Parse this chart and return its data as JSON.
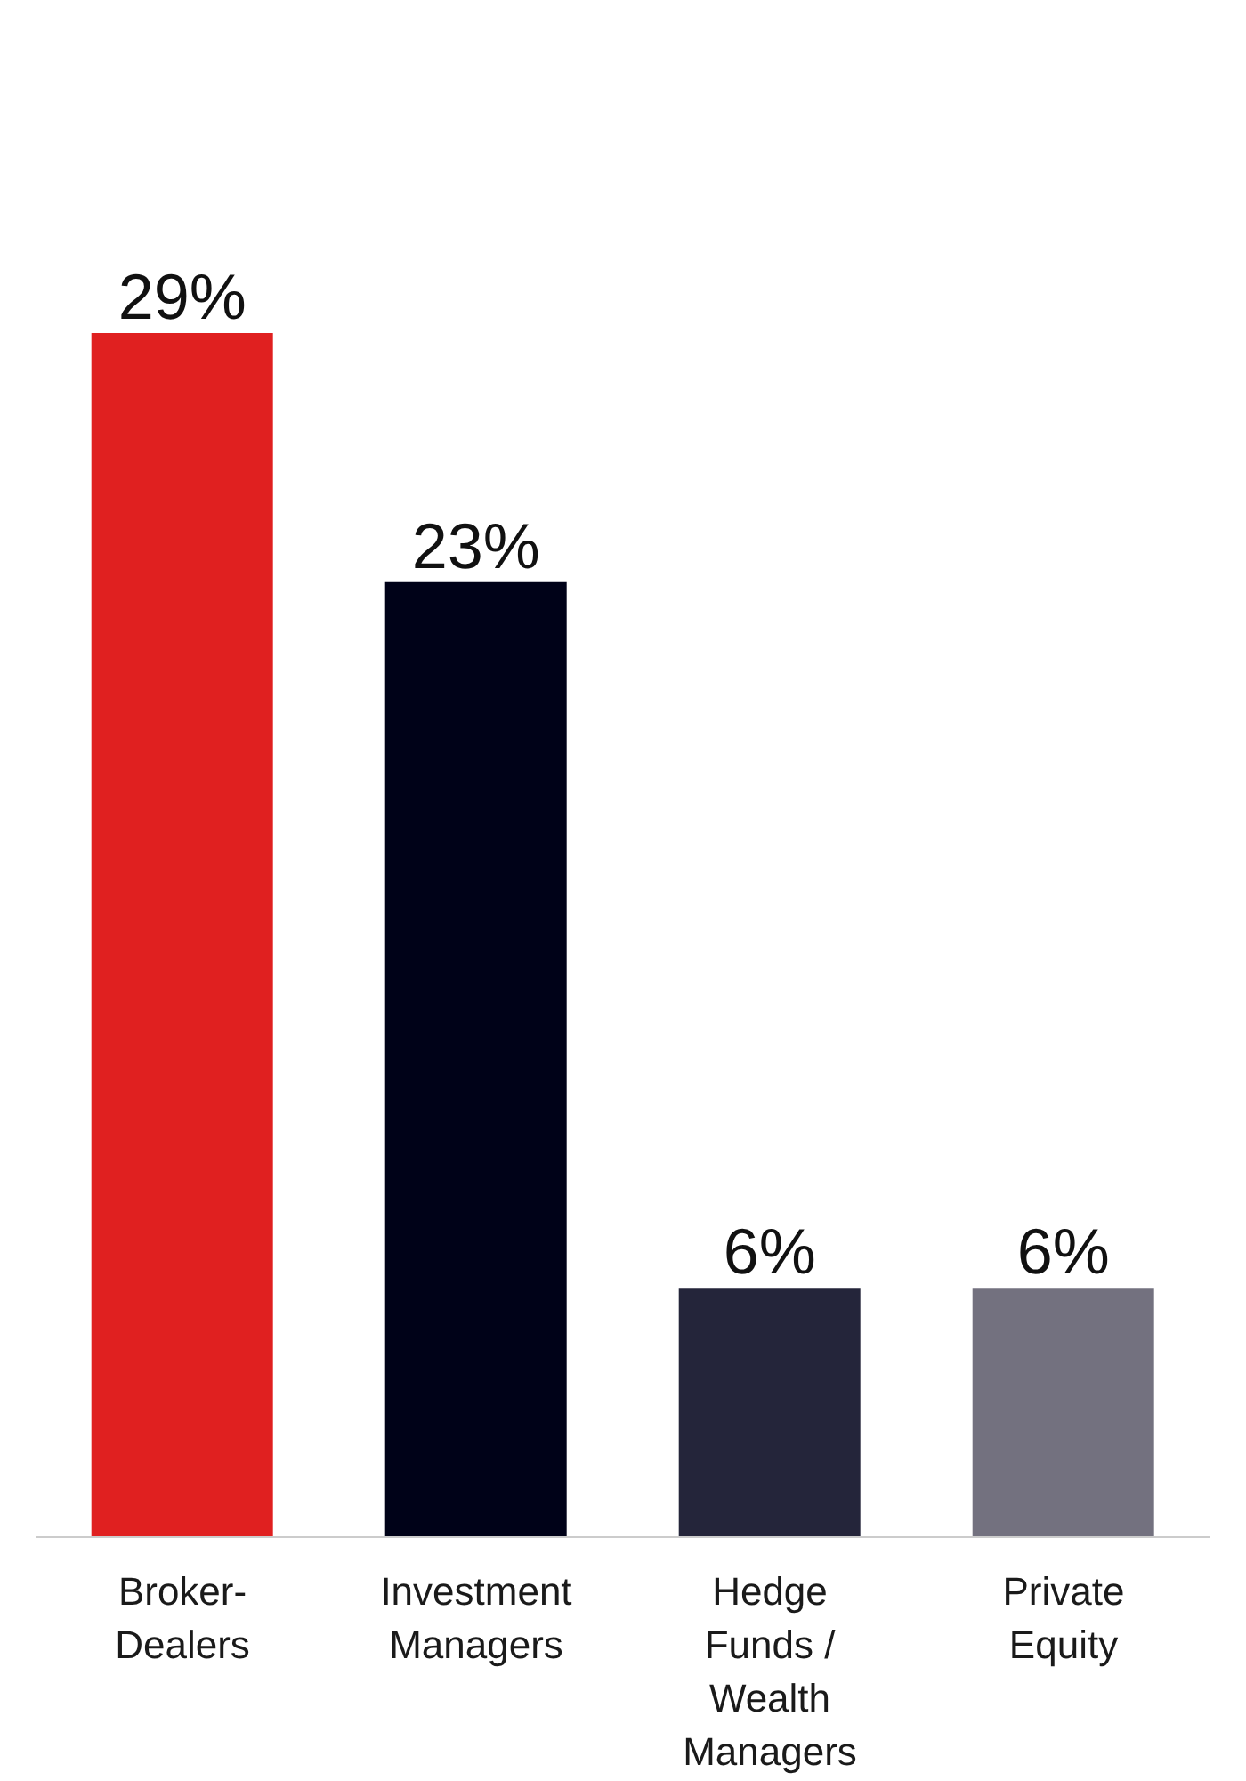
{
  "chart_data": {
    "type": "bar",
    "categories": [
      "Broker-Dealers",
      "Investment Managers",
      "Hedge Funds / Wealth Managers",
      "Private Equity"
    ],
    "values": [
      29,
      23,
      6,
      6
    ],
    "colors": [
      "#e02020",
      "#000218",
      "#24253a",
      "#73717f"
    ],
    "value_labels": [
      "29%",
      "23%",
      "6%",
      "6%"
    ]
  }
}
